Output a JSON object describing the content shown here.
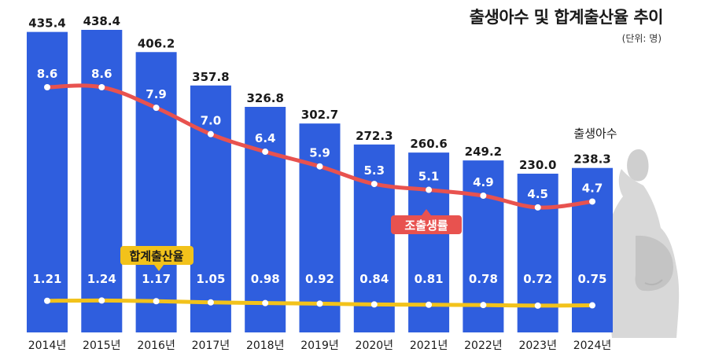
{
  "chart_data": {
    "type": "bar+line",
    "title": "출생아수 및 합계출산율 추이",
    "unit": "(단위: 명)",
    "categories": [
      "2014년",
      "2015년",
      "2016년",
      "2017년",
      "2018년",
      "2019년",
      "2020년",
      "2021년",
      "2022년",
      "2023년",
      "2024년"
    ],
    "series": [
      {
        "name": "출생아수",
        "type": "bar",
        "values": [
          435.4,
          438.4,
          406.2,
          357.8,
          326.8,
          302.7,
          272.3,
          260.6,
          249.2,
          230.0,
          238.3
        ],
        "labels": [
          "435.4",
          "438.4",
          "406.2",
          "357.8",
          "326.8",
          "302.7",
          "272.3",
          "260.6",
          "249.2",
          "230.0",
          "238.3"
        ]
      },
      {
        "name": "조출생률",
        "type": "line",
        "values": [
          8.6,
          8.6,
          7.9,
          7.0,
          6.4,
          5.9,
          5.3,
          5.1,
          4.9,
          4.5,
          4.7
        ],
        "labels": [
          "8.6",
          "8.6",
          "7.9",
          "7.0",
          "6.4",
          "5.9",
          "5.3",
          "5.1",
          "4.9",
          "4.5",
          "4.7"
        ]
      },
      {
        "name": "합계출산율",
        "type": "line",
        "values": [
          1.21,
          1.24,
          1.17,
          1.05,
          0.98,
          0.92,
          0.84,
          0.81,
          0.78,
          0.72,
          0.75
        ],
        "labels": [
          "1.21",
          "1.24",
          "1.17",
          "1.05",
          "0.98",
          "0.92",
          "0.84",
          "0.81",
          "0.78",
          "0.72",
          "0.75"
        ]
      }
    ],
    "legend": {
      "births": "출생아수",
      "crude_birth_rate": "조출생률",
      "total_fertility_rate": "합계출산율"
    }
  },
  "colors": {
    "bar": "#2f5ede",
    "crude_line": "#e8524f",
    "tfr_line": "#f2c21b",
    "tfr_badge": "#f2c21b",
    "crude_badge": "#e8524f"
  }
}
